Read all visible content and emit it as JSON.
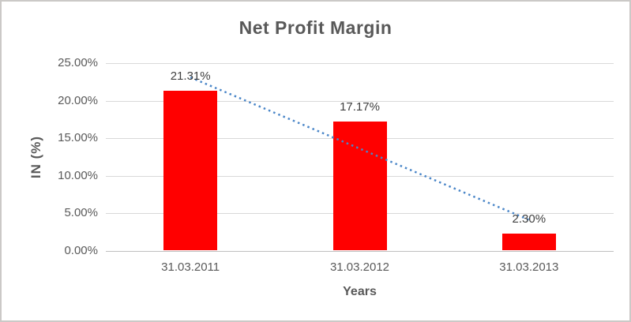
{
  "chart_data": {
    "type": "bar",
    "title": "Net Profit Margin",
    "xlabel": "Years",
    "ylabel": "IN (%)",
    "categories": [
      "31.03.2011",
      "31.03.2012",
      "31.03.2013"
    ],
    "values": [
      21.31,
      17.17,
      2.3
    ],
    "data_labels": [
      "21.31%",
      "17.17%",
      "2.30%"
    ],
    "y_ticks": [
      {
        "value": 25,
        "label": "25.00%"
      },
      {
        "value": 20,
        "label": "20.00%"
      },
      {
        "value": 15,
        "label": "15.00%"
      },
      {
        "value": 10,
        "label": "10.00%"
      },
      {
        "value": 5,
        "label": "5.00%"
      },
      {
        "value": 0,
        "label": "0.00%"
      }
    ],
    "ylim": [
      0,
      25
    ],
    "grid": true,
    "legend": false,
    "trendline": {
      "type": "linear",
      "style": "dotted",
      "values": [
        23.1,
        13.6,
        4.1
      ]
    },
    "colors": {
      "bar": "#ff0000",
      "trendline": "#4a86c8",
      "title_text": "#595959",
      "axis_text": "#595959",
      "data_label_text": "#404040",
      "gridline": "#d9d9d9",
      "axis_line": "#bfbfbf",
      "frame_border": "#cbc9c7"
    }
  }
}
